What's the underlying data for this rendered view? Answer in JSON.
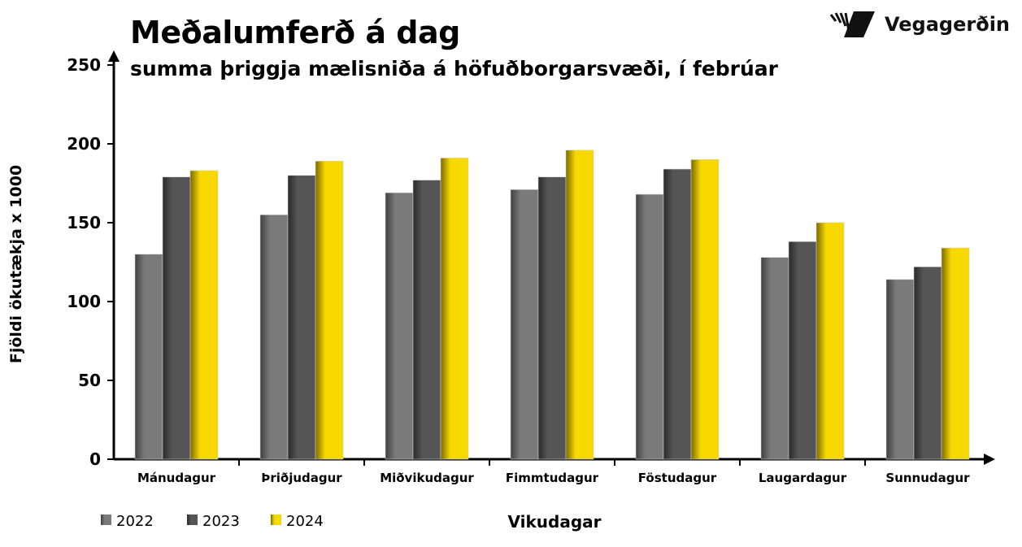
{
  "logo": {
    "text": "Vegagerðin"
  },
  "chart_data": {
    "type": "bar",
    "title": "Meðalumferð á dag",
    "subtitle": "summa þriggja mælisniða á höfuðborgarsvæði, í febrúar",
    "xlabel": "Vikudagar",
    "ylabel": "Fjöldi ökutækja x 1000",
    "ylim": [
      0,
      250
    ],
    "yticks": [
      0,
      50,
      100,
      150,
      200,
      250
    ],
    "grid": false,
    "legend": "bottom-left",
    "categories": [
      "Mánudagur",
      "Þriðjudagur",
      "Miðvikudagur",
      "Fimmtudagur",
      "Föstudagur",
      "Laugardagur",
      "Sunnudagur"
    ],
    "series": [
      {
        "name": "2022",
        "color": "#7a7a7a",
        "values": [
          130,
          155,
          169,
          171,
          168,
          128,
          114
        ]
      },
      {
        "name": "2023",
        "color": "#505050",
        "values": [
          179,
          180,
          177,
          179,
          184,
          138,
          122
        ]
      },
      {
        "name": "2024",
        "color": "#f7d900",
        "values": [
          183,
          189,
          191,
          196,
          190,
          150,
          134
        ]
      }
    ]
  }
}
